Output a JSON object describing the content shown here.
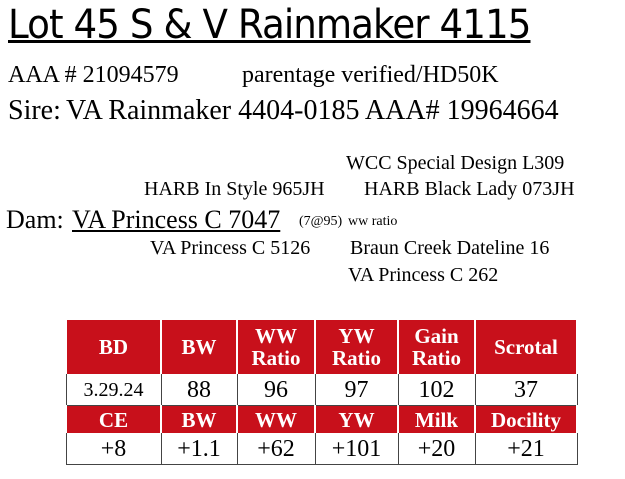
{
  "header": {
    "title": "Lot 45  S & V Rainmaker 4115",
    "registration": "AAA # 21094579",
    "verification": "parentage verified/HD50K",
    "sire_label": "Sire:",
    "sire": "VA Rainmaker 4404-0185 AAA# 19964664"
  },
  "pedigree": {
    "sire_dam_sire": "WCC Special Design L309",
    "sire_dam_left": "HARB In Style 965JH",
    "sire_dam_right": "HARB Black Lady 073JH",
    "dam_label": "Dam:",
    "dam": "VA Princess C 7047",
    "dam_note": "(7@95)",
    "dam_note_suffix": "ww ratio",
    "dam_dam": "VA Princess C 5126",
    "dam_sire": "Braun Creek Dateline 16",
    "dam_dam_dam": "VA Princess C 262"
  },
  "table": {
    "rows": [
      [
        "BD",
        "BW",
        "WW Ratio",
        "YW Ratio",
        "Gain Ratio",
        "Scrotal"
      ],
      [
        "3.29.24",
        "88",
        "96",
        "97",
        "102",
        "37"
      ],
      [
        "CE",
        "BW",
        "WW",
        "YW",
        "Milk",
        "Docility"
      ],
      [
        "+8",
        "+1.1",
        "+62",
        "+101",
        "+20",
        "+21"
      ]
    ]
  }
}
